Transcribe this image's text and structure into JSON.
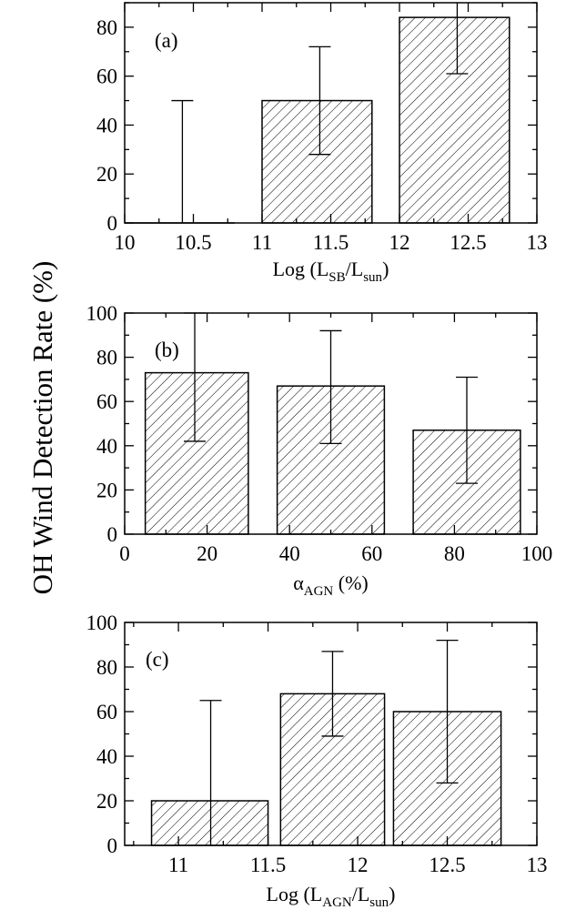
{
  "ylabel": "OH Wind Detection Rate  (%)",
  "chart_data": [
    {
      "type": "bar",
      "panel": "(a)",
      "xlabel": {
        "prefix": "Log (L",
        "sub1": "SB",
        "mid": "/L",
        "sub2": "sun",
        "suffix": ")"
      },
      "xlim": [
        10,
        13
      ],
      "ylim": [
        0,
        90
      ],
      "xticks": [
        "10",
        "10.5",
        "11",
        "11.5",
        "12",
        "12.5",
        "13"
      ],
      "xtick_values": [
        10,
        10.5,
        11,
        11.5,
        12,
        12.5,
        13
      ],
      "yticks": [
        "0",
        "20",
        "40",
        "60",
        "80"
      ],
      "ytick_values": [
        0,
        20,
        40,
        60,
        80
      ],
      "bars": [
        {
          "x0": 10.0,
          "x1": 10.8,
          "value": 0,
          "err_x": 10.42,
          "err_low": 0,
          "err_high": 50
        },
        {
          "x0": 11.0,
          "x1": 11.8,
          "value": 50,
          "err_x": 11.42,
          "err_low": 28,
          "err_high": 72
        },
        {
          "x0": 12.0,
          "x1": 12.8,
          "value": 84,
          "err_x": 12.42,
          "err_low": 61,
          "err_high": 100
        }
      ],
      "grid": false,
      "hatch": "diagonal"
    },
    {
      "type": "bar",
      "panel": "(b)",
      "xlabel": {
        "prefix": "α",
        "sub1": "AGN",
        "mid": " (%)",
        "sub2": "",
        "suffix": ""
      },
      "xlim": [
        0,
        100
      ],
      "ylim": [
        0,
        100
      ],
      "xticks": [
        "0",
        "20",
        "40",
        "60",
        "80",
        "100"
      ],
      "xtick_values": [
        0,
        20,
        40,
        60,
        80,
        100
      ],
      "yticks": [
        "0",
        "20",
        "40",
        "60",
        "80",
        "100"
      ],
      "ytick_values": [
        0,
        20,
        40,
        60,
        80,
        100
      ],
      "bars": [
        {
          "x0": 5,
          "x1": 30,
          "value": 73,
          "err_x": 17,
          "err_low": 42,
          "err_high": 100
        },
        {
          "x0": 37,
          "x1": 63,
          "value": 67,
          "err_x": 50,
          "err_low": 41,
          "err_high": 92
        },
        {
          "x0": 70,
          "x1": 96,
          "value": 47,
          "err_x": 83,
          "err_low": 23,
          "err_high": 71
        }
      ],
      "grid": false,
      "hatch": "diagonal"
    },
    {
      "type": "bar",
      "panel": "(c)",
      "xlabel": {
        "prefix": "Log (L",
        "sub1": "AGN",
        "mid": "/L",
        "sub2": "sun",
        "suffix": ")"
      },
      "xlim": [
        10.7,
        13
      ],
      "ylim": [
        0,
        100
      ],
      "xticks": [
        "11",
        "11.5",
        "12",
        "12.5",
        "13"
      ],
      "xtick_values": [
        11,
        11.5,
        12,
        12.5,
        13
      ],
      "yticks": [
        "0",
        "20",
        "40",
        "60",
        "80",
        "100"
      ],
      "ytick_values": [
        0,
        20,
        40,
        60,
        80,
        100
      ],
      "bars": [
        {
          "x0": 10.85,
          "x1": 11.5,
          "value": 20,
          "err_x": 11.18,
          "err_low": 0,
          "err_high": 65
        },
        {
          "x0": 11.57,
          "x1": 12.15,
          "value": 68,
          "err_x": 11.86,
          "err_low": 49,
          "err_high": 87
        },
        {
          "x0": 12.2,
          "x1": 12.8,
          "value": 60,
          "err_x": 12.5,
          "err_low": 28,
          "err_high": 92
        }
      ],
      "grid": false,
      "hatch": "diagonal"
    }
  ]
}
